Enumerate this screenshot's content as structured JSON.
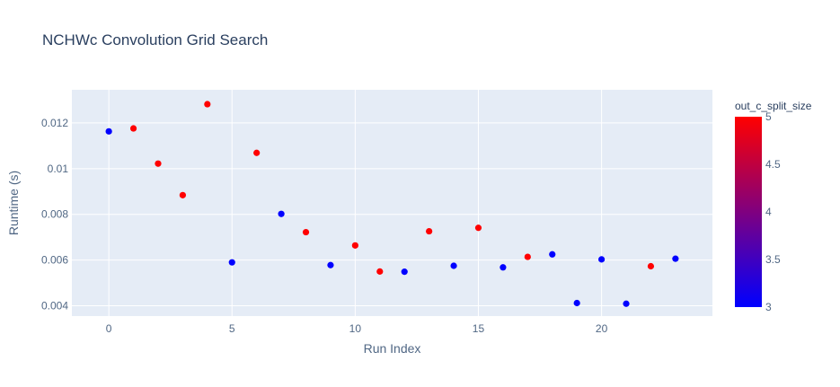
{
  "chart_data": {
    "type": "scatter",
    "title": "NCHWc Convolution Grid Search",
    "xlabel": "Run Index",
    "ylabel": "Runtime (s)",
    "xlim": [
      -1.5,
      24.5
    ],
    "ylim": [
      0.00355,
      0.01345
    ],
    "x_ticks": [
      0,
      5,
      10,
      15,
      20
    ],
    "x_tick_labels": [
      "0",
      "5",
      "10",
      "15",
      "20"
    ],
    "y_ticks": [
      0.004,
      0.006,
      0.008,
      0.01,
      0.012
    ],
    "y_tick_labels": [
      "0.004",
      "0.006",
      "0.008",
      "0.01",
      "0.012"
    ],
    "grid": true,
    "colorbar": {
      "title": "out_c_split_size",
      "range": [
        3,
        5
      ],
      "ticks": [
        3,
        3.5,
        4,
        4.5,
        5
      ],
      "tick_labels": [
        "3",
        "3.5",
        "4",
        "4.5",
        "5"
      ],
      "color_low": "#0000ff",
      "color_high": "#ff0000"
    },
    "points": [
      {
        "x": 0,
        "y": 0.01163,
        "c": 3
      },
      {
        "x": 1,
        "y": 0.01176,
        "c": 5
      },
      {
        "x": 2,
        "y": 0.01022,
        "c": 5
      },
      {
        "x": 3,
        "y": 0.00884,
        "c": 5
      },
      {
        "x": 4,
        "y": 0.01282,
        "c": 5
      },
      {
        "x": 5,
        "y": 0.0059,
        "c": 3
      },
      {
        "x": 6,
        "y": 0.01069,
        "c": 5
      },
      {
        "x": 7,
        "y": 0.00802,
        "c": 3
      },
      {
        "x": 8,
        "y": 0.00722,
        "c": 5
      },
      {
        "x": 9,
        "y": 0.00578,
        "c": 3
      },
      {
        "x": 10,
        "y": 0.00664,
        "c": 5
      },
      {
        "x": 11,
        "y": 0.0055,
        "c": 5
      },
      {
        "x": 12,
        "y": 0.00549,
        "c": 3
      },
      {
        "x": 13,
        "y": 0.00726,
        "c": 5
      },
      {
        "x": 14,
        "y": 0.00575,
        "c": 3
      },
      {
        "x": 15,
        "y": 0.00741,
        "c": 5
      },
      {
        "x": 16,
        "y": 0.00568,
        "c": 3
      },
      {
        "x": 17,
        "y": 0.00614,
        "c": 5
      },
      {
        "x": 18,
        "y": 0.00625,
        "c": 3
      },
      {
        "x": 19,
        "y": 0.00412,
        "c": 3
      },
      {
        "x": 20,
        "y": 0.00603,
        "c": 3
      },
      {
        "x": 21,
        "y": 0.00409,
        "c": 3
      },
      {
        "x": 22,
        "y": 0.00573,
        "c": 5
      },
      {
        "x": 23,
        "y": 0.00606,
        "c": 3
      }
    ]
  }
}
